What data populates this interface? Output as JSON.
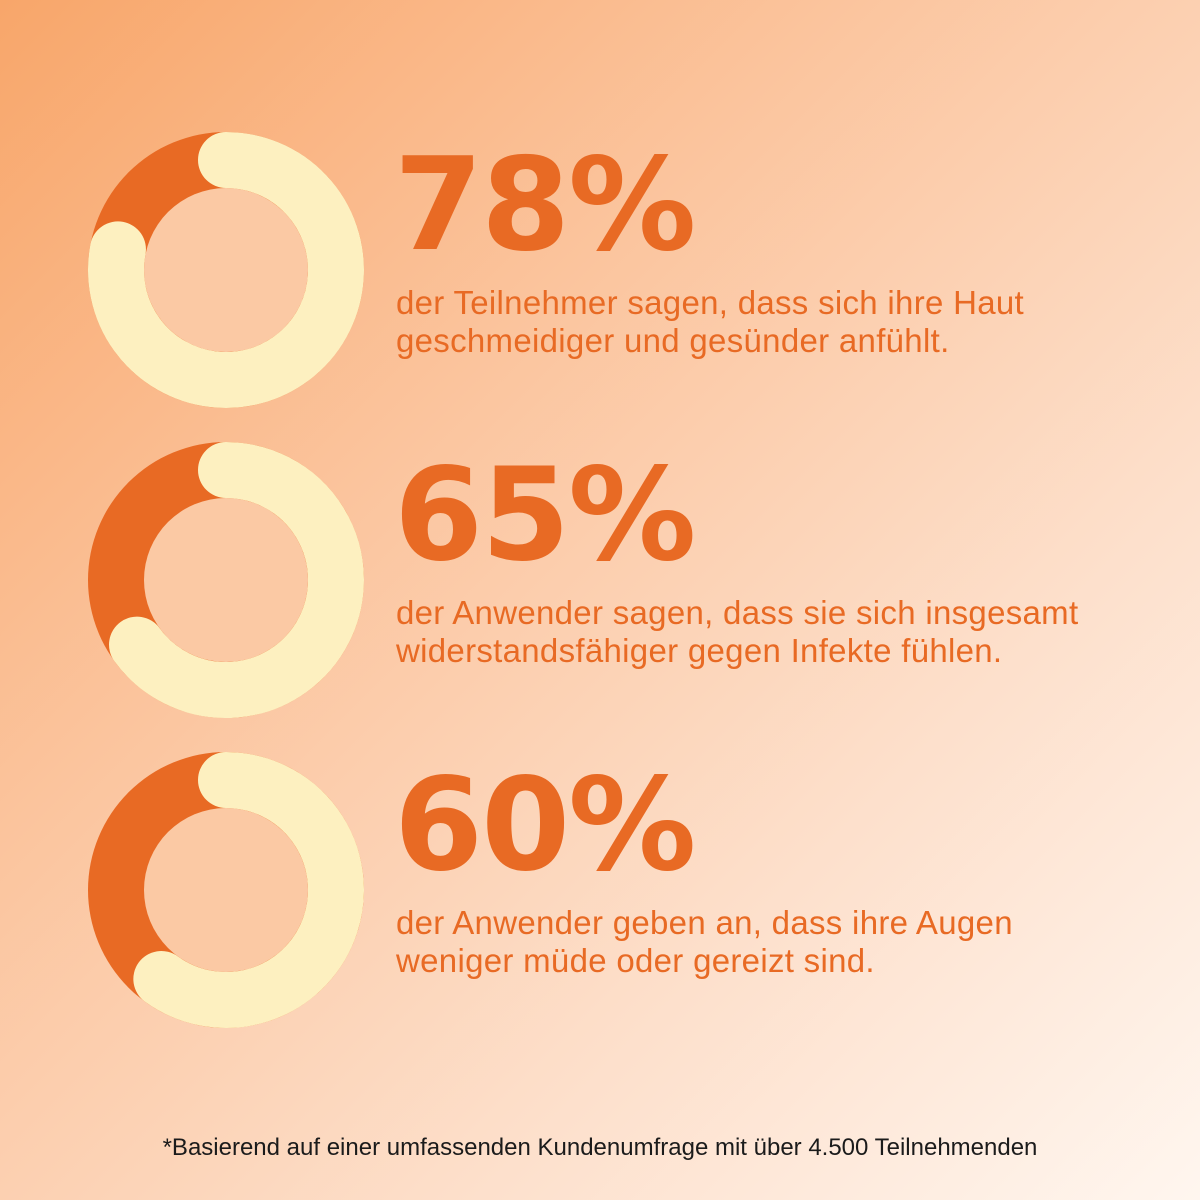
{
  "colors": {
    "accent": "#e86a24",
    "ring_track": "#fdf0c0",
    "text_dark": "#1b1b1b"
  },
  "chart_data": {
    "type": "pie",
    "charts": [
      {
        "value": 78,
        "label": "78%",
        "description": "der Teilnehmer sagen, dass sich ihre Haut geschmeidiger und gesünder anfühlt."
      },
      {
        "value": 65,
        "label": "65%",
        "description": "der Anwender sagen, dass sie sich insgesamt widerstandsfähiger gegen Infekte fühlen."
      },
      {
        "value": 60,
        "label": "60%",
        "description": "der Anwender geben an, dass ihre Augen weniger müde oder gereizt sind."
      }
    ]
  },
  "stats": [
    {
      "value": "78%",
      "description": "der Teilnehmer sagen, dass sich ihre Haut geschmeidiger und gesünder anfühlt."
    },
    {
      "value": "65%",
      "description": "der Anwender sagen, dass sie sich insgesamt widerstandsfähiger gegen Infekte fühlen."
    },
    {
      "value": "60%",
      "description": "der Anwender geben an, dass ihre Augen weniger müde oder gereizt sind."
    }
  ],
  "footnote": "*Basierend auf einer umfassenden Kundenumfrage mit über 4.500 Teilnehmenden"
}
